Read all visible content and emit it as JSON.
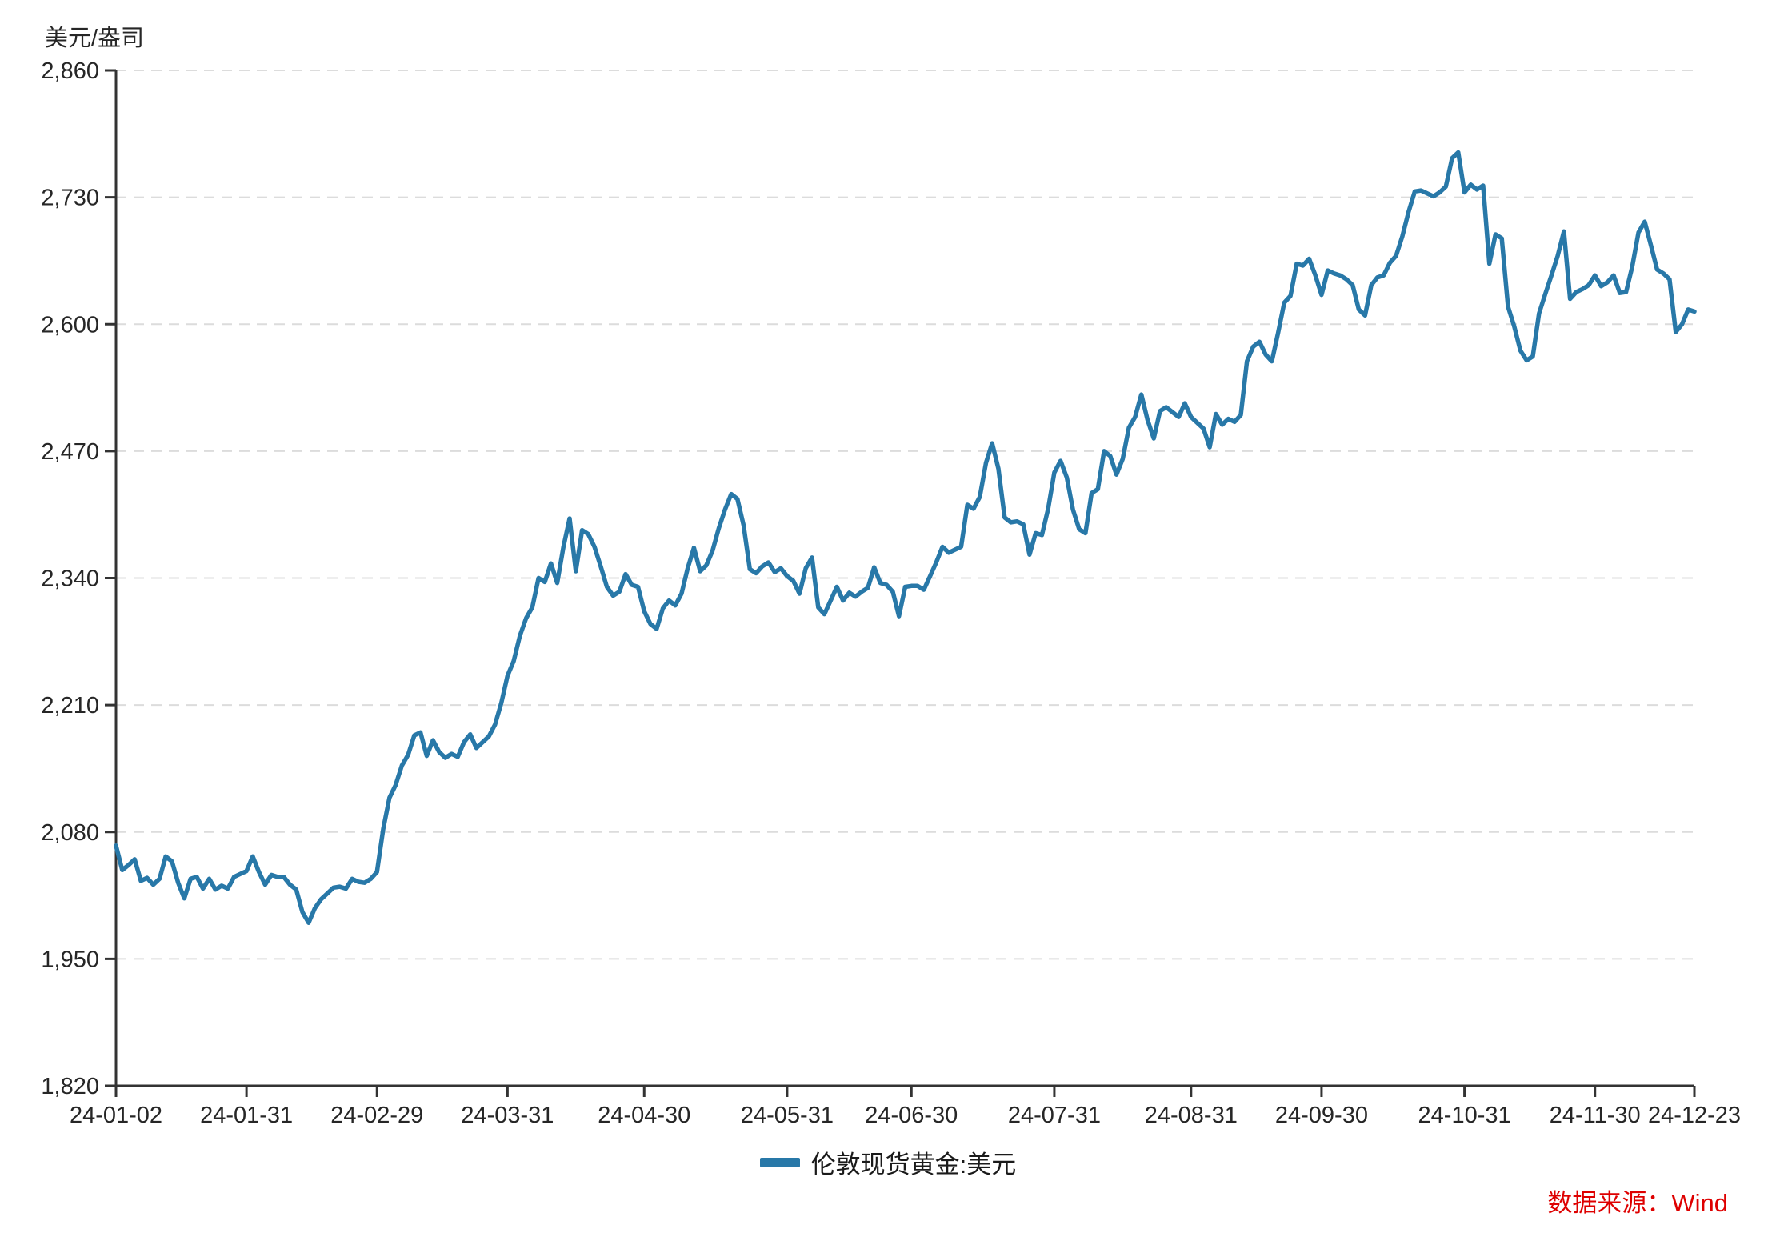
{
  "page": {
    "background": "#ffffff"
  },
  "chart": {
    "unit_label": "美元/盎司",
    "legend": [
      {
        "label": "伦敦现货黄金:美元",
        "color": "#2878A8"
      }
    ],
    "source_label": "数据来源：Wind",
    "source_color": "#DE0000",
    "axis_color": "#333333",
    "grid_color": "#DCDCDC",
    "tick_label_color": "#262626"
  },
  "chart_data": {
    "type": "line",
    "title": "",
    "xlabel": "",
    "ylabel": "美元/盎司",
    "ylim": [
      1820,
      2860
    ],
    "y_ticks": [
      1820,
      1950,
      2080,
      2210,
      2340,
      2470,
      2600,
      2730,
      2860
    ],
    "grid": "horizontal-dashed",
    "legend_position": "bottom-center",
    "x_tick_labels": [
      "24-01-02",
      "24-01-31",
      "24-02-29",
      "24-03-31",
      "24-04-30",
      "24-05-31",
      "24-06-30",
      "24-07-31",
      "24-08-31",
      "24-09-30",
      "24-10-31",
      "24-11-30",
      "24-12-23"
    ],
    "x_tick_indices": [
      0,
      21,
      42,
      63,
      85,
      108,
      128,
      151,
      173,
      194,
      217,
      238,
      254
    ],
    "series": [
      {
        "name": "伦敦现货黄金:美元",
        "color": "#2878A8",
        "values": [
          2066,
          2041,
          2046,
          2052,
          2030,
          2033,
          2026,
          2032,
          2055,
          2050,
          2028,
          2012,
          2032,
          2034,
          2022,
          2032,
          2021,
          2025,
          2022,
          2034,
          2037,
          2040,
          2055,
          2039,
          2026,
          2036,
          2034,
          2034,
          2026,
          2021,
          1998,
          1987,
          2002,
          2011,
          2017,
          2023,
          2024,
          2022,
          2032,
          2029,
          2028,
          2032,
          2039,
          2083,
          2115,
          2128,
          2148,
          2159,
          2179,
          2182,
          2158,
          2174,
          2162,
          2156,
          2160,
          2157,
          2172,
          2180,
          2166,
          2172,
          2178,
          2190,
          2212,
          2240,
          2255,
          2281,
          2299,
          2310,
          2340,
          2336,
          2355,
          2335,
          2372,
          2401,
          2347,
          2389,
          2385,
          2372,
          2352,
          2331,
          2322,
          2326,
          2344,
          2333,
          2331,
          2306,
          2293,
          2288,
          2309,
          2317,
          2312,
          2324,
          2350,
          2371,
          2347,
          2353,
          2368,
          2391,
          2410,
          2426,
          2421,
          2394,
          2349,
          2345,
          2352,
          2356,
          2346,
          2350,
          2342,
          2337,
          2324,
          2350,
          2361,
          2310,
          2303,
          2317,
          2331,
          2317,
          2325,
          2321,
          2326,
          2330,
          2351,
          2335,
          2333,
          2326,
          2301,
          2331,
          2332,
          2332,
          2328,
          2342,
          2356,
          2372,
          2366,
          2369,
          2372,
          2415,
          2411,
          2423,
          2458,
          2478,
          2452,
          2402,
          2397,
          2398,
          2395,
          2364,
          2386,
          2384,
          2411,
          2448,
          2460,
          2443,
          2410,
          2390,
          2386,
          2427,
          2431,
          2470,
          2465,
          2446,
          2462,
          2494,
          2505,
          2528,
          2502,
          2483,
          2511,
          2515,
          2510,
          2505,
          2519,
          2505,
          2499,
          2493,
          2474,
          2508,
          2497,
          2503,
          2500,
          2507,
          2562,
          2577,
          2582,
          2569,
          2562,
          2591,
          2622,
          2629,
          2662,
          2660,
          2667,
          2650,
          2630,
          2655,
          2652,
          2650,
          2646,
          2640,
          2615,
          2609,
          2640,
          2648,
          2650,
          2663,
          2670,
          2690,
          2715,
          2736,
          2737,
          2734,
          2731,
          2735,
          2741,
          2770,
          2776,
          2735,
          2743,
          2738,
          2742,
          2662,
          2692,
          2688,
          2618,
          2598,
          2573,
          2563,
          2567,
          2611,
          2631,
          2650,
          2670,
          2695,
          2626,
          2633,
          2636,
          2640,
          2650,
          2639,
          2643,
          2650,
          2632,
          2633,
          2659,
          2694,
          2705,
          2681,
          2656,
          2652,
          2646,
          2592,
          2600,
          2615,
          2613
        ]
      }
    ]
  }
}
